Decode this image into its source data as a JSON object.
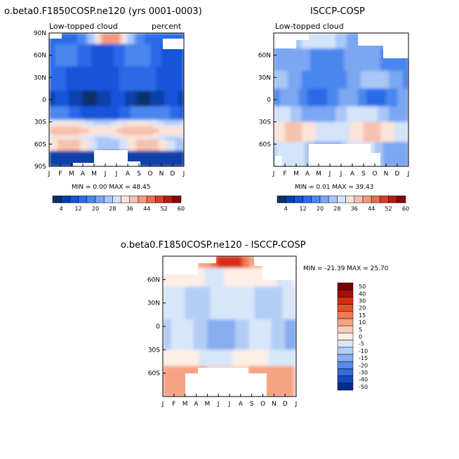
{
  "figure": {
    "panel1": {
      "title": "o.beta0.F1850COSP.ne120 (yrs 0001-0003)",
      "subtitle_left": "Low-topped cloud",
      "subtitle_right": "percent",
      "stats": "MIN =    0.00 MAX =   48.45"
    },
    "panel2": {
      "title": "ISCCP-COSP",
      "subtitle_left": "Low-topped cloud",
      "stats": "MIN =    0.01 MAX =   39.43"
    },
    "panel3": {
      "title": "o.beta0.F1850COSP.ne120 - ISCCP-COSP",
      "stats": "MIN = -21.39 MAX =  25.70"
    }
  },
  "chart_data": [
    {
      "type": "heatmap",
      "title": "o.beta0.F1850COSP.ne120 (yrs 0001-0003)",
      "variable": "Low-topped cloud",
      "units": "percent",
      "x": [
        "J",
        "F",
        "M",
        "A",
        "M",
        "J",
        "J",
        "A",
        "S",
        "O",
        "N",
        "D",
        "J"
      ],
      "y_ticks": [
        "90N",
        "60N",
        "30N",
        "0",
        "30S",
        "60S",
        "90S"
      ],
      "ylim": [
        -90,
        90
      ],
      "min": 0.0,
      "max": 48.45,
      "colorbar": {
        "labels": [
          "4",
          "12",
          "20",
          "28",
          "36",
          "44",
          "52",
          "60"
        ]
      }
    },
    {
      "type": "heatmap",
      "title": "ISCCP-COSP",
      "variable": "Low-topped cloud",
      "x": [
        "J",
        "F",
        "M",
        "A",
        "M",
        "J",
        "J",
        "A",
        "S",
        "O",
        "N",
        "D",
        "J"
      ],
      "y_ticks": [
        "60N",
        "30N",
        "0",
        "30S",
        "60S"
      ],
      "ylim": [
        -90,
        90
      ],
      "min": 0.01,
      "max": 39.43,
      "colorbar": {
        "labels": [
          "4",
          "12",
          "20",
          "28",
          "36",
          "44",
          "52",
          "60"
        ]
      }
    },
    {
      "type": "heatmap",
      "title": "o.beta0.F1850COSP.ne120 - ISCCP-COSP",
      "x": [
        "J",
        "F",
        "M",
        "A",
        "M",
        "J",
        "J",
        "A",
        "S",
        "O",
        "N",
        "D",
        "J"
      ],
      "y_ticks": [
        "60N",
        "30N",
        "0",
        "30S",
        "60S"
      ],
      "ylim": [
        -90,
        90
      ],
      "min": -21.39,
      "max": 25.7,
      "colorbar": {
        "labels": [
          "50",
          "40",
          "30",
          "20",
          "15",
          "10",
          "5",
          "0",
          "-5",
          "-10",
          "-15",
          "-20",
          "-30",
          "-40",
          "-50"
        ]
      }
    }
  ],
  "colors": {
    "seq": [
      "#08306b",
      "#0b3fa8",
      "#1454d9",
      "#2a6ae8",
      "#4a86ee",
      "#7aa6f2",
      "#a8c6f6",
      "#d3e3fa",
      "#fbe3d9",
      "#f6c1ae",
      "#f09a80",
      "#e86c50",
      "#d83f26",
      "#b51c12",
      "#7e0d0a"
    ],
    "div": [
      "#750000",
      "#a80c0a",
      "#d52d12",
      "#e84f2a",
      "#f07a55",
      "#f6a384",
      "#fbcdb8",
      "#fdeee6",
      "#d8e6fa",
      "#b2cdf6",
      "#86aef0",
      "#5a8bea",
      "#3469e0",
      "#1748c0",
      "#062a8a"
    ]
  }
}
